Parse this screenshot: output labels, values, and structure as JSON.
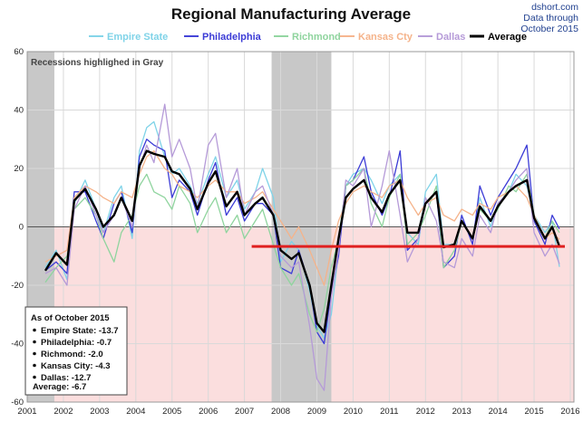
{
  "chart_data": {
    "type": "line",
    "title": "Regional Manufacturing Average",
    "source_lines": [
      "dshort.com",
      "Data through",
      "October 2015"
    ],
    "note": "Recessions highlighed in Gray",
    "ylim": [
      -60,
      60
    ],
    "yticks": [
      60,
      40,
      20,
      0,
      -20,
      -40,
      -60
    ],
    "xlim": [
      2001,
      2016.1
    ],
    "xticks": [
      "2001",
      "2002",
      "2003",
      "2004",
      "2005",
      "2006",
      "2007",
      "2008",
      "2009",
      "2010",
      "2011",
      "2012",
      "2013",
      "2014",
      "2015",
      "2016"
    ],
    "recessions": [
      [
        2001.0,
        2001.75
      ],
      [
        2007.75,
        2009.4
      ]
    ],
    "reference_line": {
      "value": -6.7,
      "x_start": 2007.2,
      "color": "#e02020"
    },
    "colors": {
      "negative_band": "#fbdede",
      "recession": "#c8c8c8",
      "grid": "#d9d9d9"
    },
    "series": [
      {
        "name": "Empire State",
        "color": "#7fd3e8",
        "width": 1.3,
        "x": [
          2001.5,
          2001.8,
          2002.1,
          2002.3,
          2002.6,
          2002.9,
          2003.1,
          2003.4,
          2003.6,
          2003.9,
          2004.1,
          2004.3,
          2004.5,
          2004.8,
          2005.0,
          2005.2,
          2005.5,
          2005.7,
          2006.0,
          2006.2,
          2006.5,
          2006.8,
          2007.0,
          2007.3,
          2007.5,
          2007.8,
          2008.0,
          2008.3,
          2008.5,
          2008.8,
          2009.0,
          2009.2,
          2009.4,
          2009.6,
          2009.8,
          2010.0,
          2010.3,
          2010.5,
          2010.8,
          2011.0,
          2011.3,
          2011.5,
          2011.8,
          2012.0,
          2012.3,
          2012.5,
          2012.8,
          2013.0,
          2013.3,
          2013.5,
          2013.8,
          2014.0,
          2014.3,
          2014.5,
          2014.8,
          2015.0,
          2015.3,
          2015.5,
          2015.7
        ],
        "y": [
          -14,
          -8,
          -18,
          8,
          16,
          6,
          -2,
          10,
          14,
          -4,
          26,
          34,
          36,
          24,
          18,
          20,
          14,
          8,
          18,
          24,
          10,
          16,
          6,
          12,
          20,
          10,
          -12,
          -5,
          -8,
          -22,
          -34,
          -38,
          -30,
          -8,
          14,
          18,
          20,
          16,
          8,
          14,
          18,
          -2,
          -6,
          12,
          18,
          -6,
          -6,
          2,
          -4,
          10,
          0,
          8,
          12,
          18,
          14,
          4,
          -2,
          2,
          -13.7
        ]
      },
      {
        "name": "Philadelphia",
        "color": "#3b3bd6",
        "width": 1.3,
        "x": [
          2001.5,
          2001.8,
          2002.1,
          2002.3,
          2002.6,
          2002.9,
          2003.1,
          2003.4,
          2003.6,
          2003.9,
          2004.1,
          2004.3,
          2004.5,
          2004.8,
          2005.0,
          2005.2,
          2005.5,
          2005.7,
          2006.0,
          2006.2,
          2006.5,
          2006.8,
          2007.0,
          2007.3,
          2007.5,
          2007.8,
          2008.0,
          2008.3,
          2008.5,
          2008.8,
          2009.0,
          2009.2,
          2009.4,
          2009.6,
          2009.8,
          2010.0,
          2010.3,
          2010.5,
          2010.8,
          2011.0,
          2011.3,
          2011.5,
          2011.8,
          2012.0,
          2012.3,
          2012.5,
          2012.8,
          2013.0,
          2013.3,
          2013.5,
          2013.8,
          2014.0,
          2014.3,
          2014.5,
          2014.8,
          2015.0,
          2015.3,
          2015.5,
          2015.7
        ],
        "y": [
          -15,
          -12,
          -16,
          12,
          12,
          2,
          -4,
          8,
          12,
          -2,
          24,
          30,
          28,
          26,
          10,
          16,
          12,
          4,
          16,
          22,
          4,
          10,
          2,
          8,
          8,
          4,
          -14,
          -16,
          -8,
          -20,
          -36,
          -40,
          -22,
          -10,
          14,
          16,
          24,
          12,
          4,
          10,
          26,
          -8,
          -4,
          8,
          12,
          -14,
          -10,
          4,
          -6,
          14,
          4,
          10,
          16,
          20,
          28,
          2,
          -6,
          4,
          -0.7
        ]
      },
      {
        "name": "Richmond",
        "color": "#8fd49e",
        "width": 1.3,
        "x": [
          2001.5,
          2001.8,
          2002.1,
          2002.3,
          2002.6,
          2002.9,
          2003.1,
          2003.4,
          2003.6,
          2003.9,
          2004.1,
          2004.3,
          2004.5,
          2004.8,
          2005.0,
          2005.2,
          2005.5,
          2005.7,
          2006.0,
          2006.2,
          2006.5,
          2006.8,
          2007.0,
          2007.3,
          2007.5,
          2007.8,
          2008.0,
          2008.3,
          2008.5,
          2008.8,
          2009.0,
          2009.2,
          2009.4,
          2009.6,
          2009.8,
          2010.0,
          2010.3,
          2010.5,
          2010.8,
          2011.0,
          2011.3,
          2011.5,
          2011.8,
          2012.0,
          2012.3,
          2012.5,
          2012.8,
          2013.0,
          2013.3,
          2013.5,
          2013.8,
          2014.0,
          2014.3,
          2014.5,
          2014.8,
          2015.0,
          2015.3,
          2015.5,
          2015.7
        ],
        "y": [
          -19,
          -14,
          -10,
          6,
          10,
          4,
          -4,
          -12,
          -2,
          4,
          14,
          18,
          12,
          10,
          6,
          14,
          8,
          -2,
          6,
          10,
          -2,
          4,
          -4,
          2,
          6,
          -6,
          -14,
          -20,
          -16,
          -30,
          -36,
          -28,
          -14,
          -4,
          14,
          16,
          20,
          8,
          0,
          10,
          18,
          -6,
          -2,
          4,
          14,
          -14,
          -8,
          2,
          -4,
          6,
          2,
          6,
          14,
          12,
          18,
          4,
          -4,
          2,
          -2.0
        ]
      },
      {
        "name": "Kansas Cty",
        "color": "#f5b38a",
        "width": 1.3,
        "x": [
          2001.5,
          2001.8,
          2002.1,
          2002.3,
          2002.6,
          2002.9,
          2003.1,
          2003.4,
          2003.6,
          2003.9,
          2004.1,
          2004.3,
          2004.5,
          2004.8,
          2005.0,
          2005.2,
          2005.5,
          2005.7,
          2006.0,
          2006.2,
          2006.5,
          2006.8,
          2007.0,
          2007.3,
          2007.5,
          2007.8,
          2008.0,
          2008.3,
          2008.5,
          2008.8,
          2009.0,
          2009.2,
          2009.4,
          2009.6,
          2009.8,
          2010.0,
          2010.3,
          2010.5,
          2010.8,
          2011.0,
          2011.3,
          2011.5,
          2011.8,
          2012.0,
          2012.3,
          2012.5,
          2012.8,
          2013.0,
          2013.3,
          2013.5,
          2013.8,
          2014.0,
          2014.3,
          2014.5,
          2014.8,
          2015.0,
          2015.3,
          2015.5,
          2015.7
        ],
        "y": [
          -12,
          -10,
          -8,
          10,
          14,
          12,
          10,
          8,
          12,
          10,
          18,
          24,
          26,
          20,
          18,
          14,
          12,
          10,
          14,
          16,
          12,
          12,
          8,
          10,
          12,
          6,
          2,
          -4,
          0,
          -8,
          -14,
          -20,
          -8,
          2,
          8,
          12,
          14,
          12,
          10,
          14,
          16,
          10,
          4,
          8,
          10,
          4,
          2,
          6,
          4,
          8,
          6,
          10,
          12,
          14,
          10,
          4,
          -4,
          -2,
          -4.3
        ]
      },
      {
        "name": "Dallas",
        "color": "#b59ad8",
        "width": 1.3,
        "x": [
          2001.5,
          2001.8,
          2002.1,
          2002.3,
          2002.6,
          2002.9,
          2003.1,
          2003.4,
          2003.6,
          2003.9,
          2004.1,
          2004.3,
          2004.5,
          2004.8,
          2005.0,
          2005.2,
          2005.5,
          2005.7,
          2006.0,
          2006.2,
          2006.5,
          2006.8,
          2007.0,
          2007.3,
          2007.5,
          2007.8,
          2008.0,
          2008.3,
          2008.5,
          2008.8,
          2009.0,
          2009.2,
          2009.4,
          2009.6,
          2009.8,
          2010.0,
          2010.3,
          2010.5,
          2010.8,
          2011.0,
          2011.3,
          2011.5,
          2011.8,
          2012.0,
          2012.3,
          2012.5,
          2012.8,
          2013.0,
          2013.3,
          2013.5,
          2013.8,
          2014.0,
          2014.3,
          2014.5,
          2014.8,
          2015.0,
          2015.3,
          2015.5,
          2015.7
        ],
        "y": [
          -16,
          -14,
          -20,
          6,
          14,
          4,
          -2,
          4,
          10,
          0,
          20,
          28,
          22,
          42,
          24,
          30,
          20,
          6,
          28,
          32,
          10,
          20,
          4,
          12,
          14,
          4,
          -10,
          -14,
          -12,
          -34,
          -52,
          -56,
          -24,
          -8,
          16,
          14,
          20,
          0,
          14,
          26,
          4,
          -12,
          -4,
          10,
          2,
          -12,
          -14,
          -4,
          -10,
          4,
          -2,
          8,
          12,
          16,
          20,
          -2,
          -10,
          -6,
          -12.7
        ]
      },
      {
        "name": "Average",
        "color": "#000000",
        "width": 2.4,
        "x": [
          2001.5,
          2001.8,
          2002.1,
          2002.3,
          2002.6,
          2002.9,
          2003.1,
          2003.4,
          2003.6,
          2003.9,
          2004.1,
          2004.3,
          2004.5,
          2004.8,
          2005.0,
          2005.2,
          2005.5,
          2005.7,
          2006.0,
          2006.2,
          2006.5,
          2006.8,
          2007.0,
          2007.3,
          2007.5,
          2007.8,
          2008.0,
          2008.3,
          2008.5,
          2008.8,
          2009.0,
          2009.2,
          2009.4,
          2009.6,
          2009.8,
          2010.0,
          2010.3,
          2010.5,
          2010.8,
          2011.0,
          2011.3,
          2011.5,
          2011.8,
          2012.0,
          2012.3,
          2012.5,
          2012.8,
          2013.0,
          2013.3,
          2013.5,
          2013.8,
          2014.0,
          2014.3,
          2014.5,
          2014.8,
          2015.0,
          2015.3,
          2015.5,
          2015.7
        ],
        "y": [
          -15,
          -9,
          -13,
          9,
          13,
          6,
          0,
          4,
          10,
          2,
          21,
          26,
          25,
          24,
          19,
          18,
          13,
          6,
          15,
          19,
          7,
          12,
          4,
          8,
          10,
          4,
          -8,
          -11,
          -9,
          -20,
          -33,
          -36,
          -20,
          -4,
          10,
          13,
          16,
          10,
          5,
          11,
          16,
          -2,
          -2,
          8,
          12,
          -7,
          -6,
          2,
          -4,
          7,
          2,
          7,
          12,
          14,
          16,
          3,
          -4,
          0,
          -6.7
        ]
      }
    ],
    "legend_position": "top",
    "info_box": {
      "heading": "As of October 2015",
      "items": [
        "Empire State:  -13.7",
        "Philadelphia:  -0.7",
        "Richmond:  -2.0",
        "Kansas City:  -4.3",
        "Dallas:  -12.7"
      ],
      "average": "Average:  -6.7"
    }
  }
}
